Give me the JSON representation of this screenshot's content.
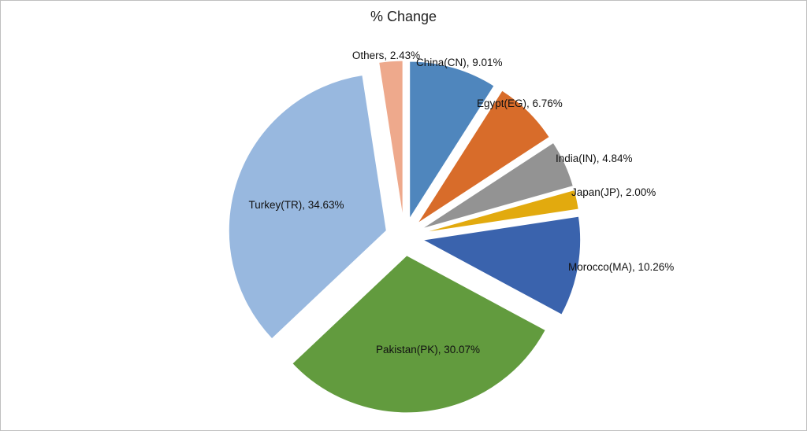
{
  "chart_data": {
    "type": "pie",
    "title": "% Change",
    "exploded": true,
    "legend": "none",
    "slices": [
      {
        "name": "China(CN)",
        "value": 9.01,
        "label": "China(CN), 9.01%",
        "color": "#4f86bd"
      },
      {
        "name": "Egypt(EG)",
        "value": 6.76,
        "label": "Egypt(EG), 6.76%",
        "color": "#d86c2a"
      },
      {
        "name": "India(IN)",
        "value": 4.84,
        "label": "India(IN), 4.84%",
        "color": "#939393"
      },
      {
        "name": "Japan(JP)",
        "value": 2.0,
        "label": "Japan(JP), 2.00%",
        "color": "#e2aa0e"
      },
      {
        "name": "Morocco(MA)",
        "value": 10.26,
        "label": "Morocco(MA), 10.26%",
        "color": "#3a63ad"
      },
      {
        "name": "Pakistan(PK)",
        "value": 30.07,
        "label": "Pakistan(PK), 30.07%",
        "color": "#629b3e"
      },
      {
        "name": "Turkey(TR)",
        "value": 34.63,
        "label": "Turkey(TR), 34.63%",
        "color": "#98b8df"
      },
      {
        "name": "Others",
        "value": 2.43,
        "label": "Others, 2.43%",
        "color": "#eea98c"
      }
    ]
  }
}
